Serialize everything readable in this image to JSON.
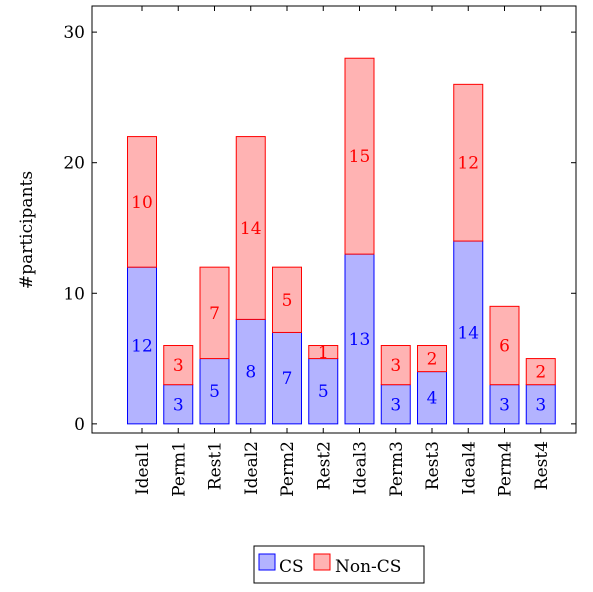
{
  "chart_data": {
    "type": "bar",
    "stacked": true,
    "categories": [
      "Ideal1",
      "Perm1",
      "Rest1",
      "Ideal2",
      "Perm2",
      "Rest2",
      "Ideal3",
      "Perm3",
      "Rest3",
      "Ideal4",
      "Perm4",
      "Rest4"
    ],
    "series": [
      {
        "name": "CS",
        "values": [
          12,
          3,
          5,
          8,
          7,
          5,
          13,
          3,
          4,
          14,
          3,
          3
        ],
        "fill": "#b3b3ff",
        "stroke": "#0000ff",
        "label_color": "#0000ff"
      },
      {
        "name": "Non-CS",
        "values": [
          10,
          3,
          7,
          14,
          5,
          1,
          15,
          3,
          2,
          12,
          6,
          2
        ],
        "fill": "#ffb3b3",
        "stroke": "#ff0000",
        "label_color": "#ff0000"
      }
    ],
    "ylabel": "#participants",
    "ylim": [
      -0.7,
      32
    ],
    "yticks": [
      0,
      10,
      20,
      30
    ],
    "grid": false,
    "legend_position": "bottom-center",
    "x_tick_rotation": "vertical"
  }
}
